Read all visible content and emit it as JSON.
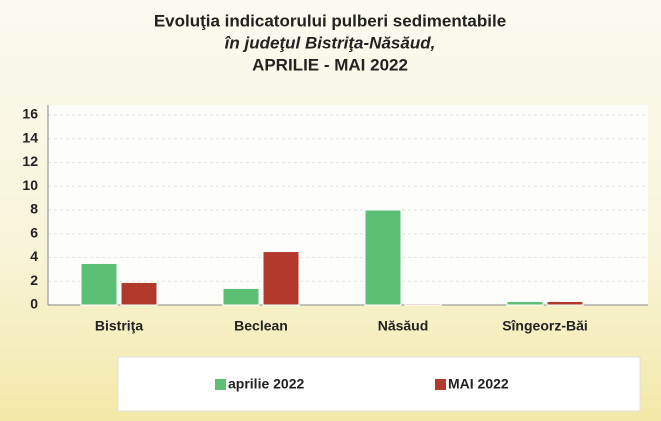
{
  "chart_data": {
    "type": "bar",
    "title_lines": [
      "Evoluţia indicatorului pulberi sedimentabile",
      "în judeţul Bistriţa-Năsăud,",
      "APRILIE - MAI 2022"
    ],
    "categories": [
      "Bistriţa",
      "Beclean",
      "Năsăud",
      "Sîngeorz-Băi"
    ],
    "series": [
      {
        "name": "aprilie 2022",
        "color": "#5cbf76",
        "values": [
          3.5,
          1.4,
          8.0,
          0.3
        ]
      },
      {
        "name": "MAI 2022",
        "color": "#b23a2c",
        "values": [
          1.9,
          4.5,
          0.1,
          0.3
        ]
      }
    ],
    "ylim": [
      0,
      16
    ],
    "yticks": [
      0,
      2,
      4,
      6,
      8,
      10,
      12,
      14,
      16
    ],
    "grid": true,
    "legend": "bottom"
  }
}
